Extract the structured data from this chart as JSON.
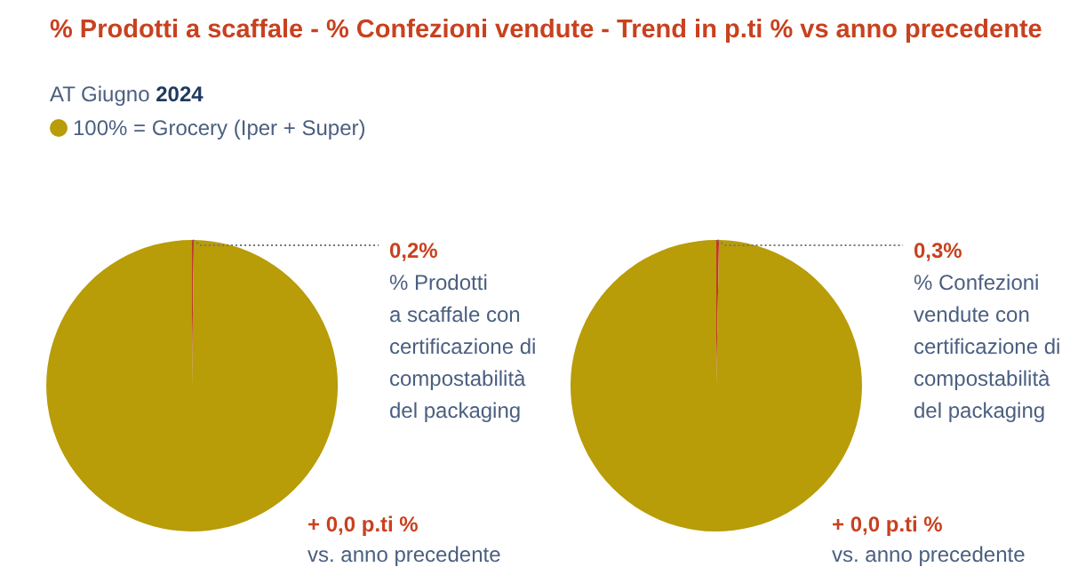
{
  "chart_data": [
    {
      "type": "pie",
      "title": "% Prodotti a scaffale - % Confezioni vendute - Trend in p.ti % vs anno precedente",
      "subtitle": "AT Giugno 2024",
      "categories": [
        null,
        "100% = Grocery (Iper + Super)"
      ],
      "values": [
        0.2,
        99.8
      ],
      "colors": [
        "#c0392b",
        "#b89c08"
      ],
      "value_labels": [
        "0,2%",
        null
      ],
      "legend": "top",
      "annotations": [
        "% Prodotti\na scaffale con\ncertificazione di\ncompostabilità\ndel packaging",
        "+ 0,0 p.ti %",
        "vs. anno precedente"
      ]
    },
    {
      "type": "pie",
      "categories": [
        null,
        null
      ],
      "values": [
        0.3,
        99.7
      ],
      "colors": [
        "#c0392b",
        "#b89c08"
      ],
      "value_labels": [
        "0,3%",
        null
      ],
      "annotations": [
        "% Confezioni\nvendute con\ncertificazione di\ncompostabilità\ndel packaging",
        "+ 0,0 p.ti %",
        "vs. anno precedente"
      ]
    }
  ]
}
